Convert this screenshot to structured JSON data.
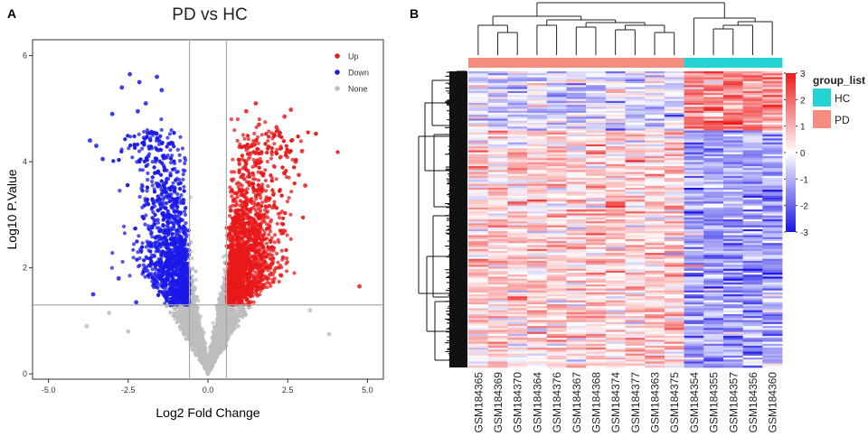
{
  "panels": {
    "a_label": "A",
    "b_label": "B"
  },
  "chart_data": [
    {
      "type": "scatter",
      "title": "PD vs HC",
      "xlabel": "Log2 Fold Change",
      "ylabel": "Log10 P.Value",
      "xlim": [
        -5.5,
        5.5
      ],
      "ylim": [
        -0.1,
        6.3
      ],
      "xticks": [
        "-5.0",
        "-2.5",
        "0.0",
        "2.5",
        "5.0"
      ],
      "xtick_values": [
        -5.0,
        -2.5,
        0.0,
        2.5,
        5.0
      ],
      "yticks": [
        "0",
        "2",
        "4",
        "6"
      ],
      "ytick_values": [
        0,
        2,
        4,
        6
      ],
      "fold_change_thresholds": [
        -0.58,
        0.58
      ],
      "pvalue_threshold": 1.3,
      "legend": {
        "placement": "top-right",
        "entries": [
          {
            "label": "Up",
            "color": "#e8191b"
          },
          {
            "label": "Down",
            "color": "#1b19e8"
          },
          {
            "label": "None",
            "color": "#bdbdbd"
          }
        ]
      },
      "highlighted_points": {
        "down": [
          [
            -2.7,
            5.4
          ],
          [
            -2.45,
            5.65
          ],
          [
            -2.15,
            5.5
          ],
          [
            -1.95,
            5.1
          ],
          [
            -1.6,
            5.6
          ],
          [
            -1.45,
            5.35
          ],
          [
            -3.0,
            4.9
          ],
          [
            -2.2,
            4.95
          ],
          [
            -3.7,
            4.4
          ],
          [
            -3.5,
            4.3
          ],
          [
            -3.3,
            4.05
          ],
          [
            -3.6,
            1.5
          ],
          [
            -2.8,
            1.8
          ],
          [
            -2.25,
            1.35
          ]
        ],
        "up": [
          [
            1.5,
            5.1
          ],
          [
            1.2,
            4.95
          ],
          [
            2.6,
            4.98
          ],
          [
            1.6,
            4.7
          ],
          [
            2.15,
            4.65
          ],
          [
            2.4,
            4.85
          ],
          [
            2.95,
            4.2
          ],
          [
            2.75,
            4.0
          ],
          [
            3.05,
            3.55
          ],
          [
            2.85,
            3.75
          ],
          [
            4.75,
            1.65
          ]
        ],
        "none": [
          [
            -3.8,
            0.9
          ],
          [
            -3.1,
            1.15
          ],
          [
            -2.5,
            0.8
          ],
          [
            3.2,
            1.2
          ],
          [
            3.8,
            0.75
          ]
        ]
      }
    },
    {
      "type": "heatmap",
      "colorbar": {
        "min": -3,
        "max": 3,
        "ticks": [
          "3",
          "2",
          "1",
          "0",
          "-1",
          "-2",
          "-3"
        ],
        "tick_values": [
          3,
          2,
          1,
          0,
          -1,
          -2,
          -3
        ],
        "colors": [
          "#1a14e6",
          "#ffffff",
          "#ee1b1b"
        ]
      },
      "annotation": {
        "title": "group_list",
        "entries": [
          {
            "label": "HC",
            "color": "#26d3d3"
          },
          {
            "label": "PD",
            "color": "#f28d80"
          }
        ]
      },
      "samples": [
        {
          "id": "GSM184365",
          "group": "PD"
        },
        {
          "id": "GSM184369",
          "group": "PD"
        },
        {
          "id": "GSM184370",
          "group": "PD"
        },
        {
          "id": "GSM184364",
          "group": "PD"
        },
        {
          "id": "GSM184376",
          "group": "PD"
        },
        {
          "id": "GSM184367",
          "group": "PD"
        },
        {
          "id": "GSM184368",
          "group": "PD"
        },
        {
          "id": "GSM184374",
          "group": "PD"
        },
        {
          "id": "GSM184377",
          "group": "PD"
        },
        {
          "id": "GSM184363",
          "group": "PD"
        },
        {
          "id": "GSM184375",
          "group": "PD"
        },
        {
          "id": "GSM184354",
          "group": "HC"
        },
        {
          "id": "GSM184355",
          "group": "HC"
        },
        {
          "id": "GSM184357",
          "group": "HC"
        },
        {
          "id": "GSM184356",
          "group": "HC"
        },
        {
          "id": "GSM184360",
          "group": "HC"
        }
      ],
      "pattern": "upper genes higher in HC than PD; lower genes higher in PD than HC"
    }
  ]
}
